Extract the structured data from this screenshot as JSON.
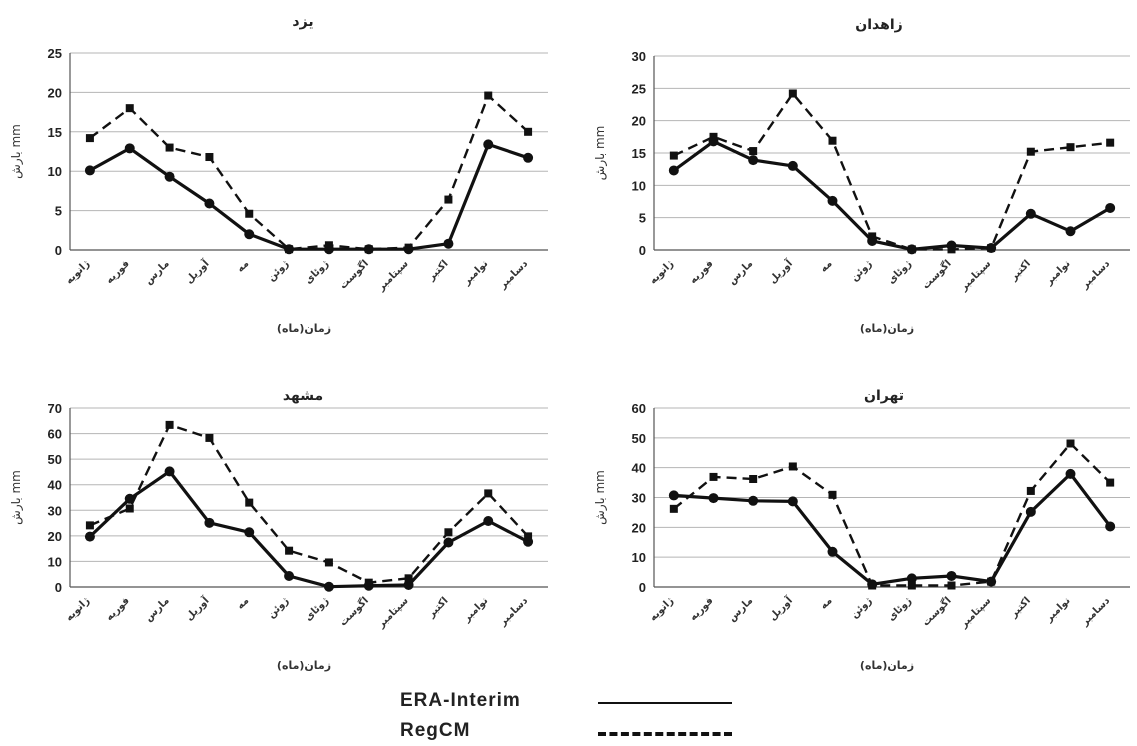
{
  "legend": {
    "era_label": "ERA-Interim",
    "regcm_label": "RegCM"
  },
  "months": [
    "ژانویه",
    "فوریه",
    "مارس",
    "آوریل",
    "مه",
    "ژوئن",
    "ژوئای",
    "اگوست",
    "سپتامبر",
    "اکتبر",
    "نوامبر",
    "دسامبر"
  ],
  "chart_data": [
    {
      "type": "line",
      "title": "یزد",
      "xlabel": "زمان(ماه)",
      "ylabel": "بارش mm",
      "ylim": [
        0,
        25
      ],
      "yticks": [
        0,
        5,
        10,
        15,
        20,
        25
      ],
      "grid": true,
      "series": [
        {
          "name": "ERA-Interim",
          "values": [
            10.1,
            12.9,
            9.3,
            5.9,
            2.0,
            0.1,
            0.1,
            0.1,
            0.1,
            0.8,
            13.4,
            11.7
          ]
        },
        {
          "name": "RegCM",
          "values": [
            14.2,
            18.0,
            13.0,
            11.8,
            4.6,
            0.1,
            0.6,
            0.1,
            0.3,
            6.4,
            19.6,
            15.0
          ]
        }
      ]
    },
    {
      "type": "line",
      "title": "زاهدان",
      "xlabel": "زمان(ماه)",
      "ylabel": "بارش mm",
      "ylim": [
        0,
        30
      ],
      "yticks": [
        0,
        5,
        10,
        15,
        20,
        25,
        30
      ],
      "grid": true,
      "series": [
        {
          "name": "ERA-Interim",
          "values": [
            12.3,
            16.8,
            13.9,
            13.0,
            7.6,
            1.4,
            0.1,
            0.7,
            0.3,
            5.6,
            2.9,
            6.5
          ]
        },
        {
          "name": "RegCM",
          "values": [
            14.6,
            17.5,
            15.3,
            24.2,
            16.9,
            2.1,
            0.1,
            0.1,
            0.3,
            15.2,
            15.9,
            16.6
          ]
        }
      ]
    },
    {
      "type": "line",
      "title": "مشهد",
      "xlabel": "زمان(ماه)",
      "ylabel": "بارش mm",
      "ylim": [
        0,
        70
      ],
      "yticks": [
        0,
        10,
        20,
        30,
        40,
        50,
        60,
        70
      ],
      "grid": true,
      "series": [
        {
          "name": "ERA-Interim",
          "values": [
            19.7,
            34.5,
            45.2,
            25.1,
            21.4,
            4.3,
            0.1,
            0.5,
            0.8,
            17.4,
            25.8,
            17.7
          ]
        },
        {
          "name": "RegCM",
          "values": [
            24.1,
            30.7,
            63.4,
            58.3,
            33.0,
            14.2,
            9.6,
            1.7,
            3.4,
            21.4,
            36.6,
            19.8
          ]
        }
      ]
    },
    {
      "type": "line",
      "title": "تهران",
      "xlabel": "زمان(ماه)",
      "ylabel": "بارش mm",
      "ylim": [
        0,
        60
      ],
      "yticks": [
        0,
        10,
        20,
        30,
        40,
        50,
        60
      ],
      "grid": true,
      "series": [
        {
          "name": "ERA-Interim",
          "values": [
            30.7,
            29.8,
            28.9,
            28.7,
            11.8,
            0.9,
            2.9,
            3.7,
            1.8,
            25.2,
            37.9,
            20.3
          ]
        },
        {
          "name": "RegCM",
          "values": [
            26.2,
            36.9,
            36.2,
            40.4,
            30.9,
            0.5,
            0.5,
            0.5,
            1.8,
            32.2,
            48.1,
            35.0
          ]
        }
      ]
    }
  ]
}
